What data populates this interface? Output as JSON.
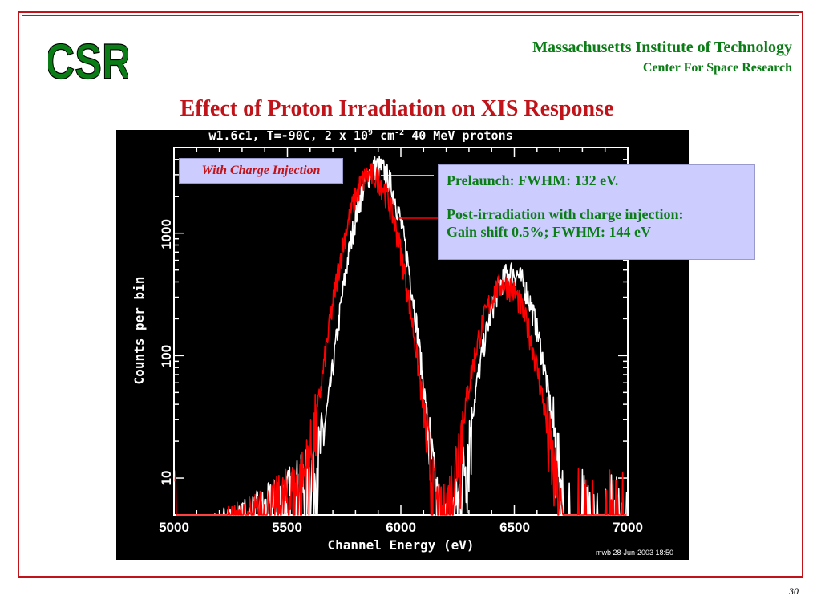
{
  "header": {
    "logo_text": "CSR",
    "org_name": "Massachusetts Institute of Technology",
    "org_sub": "Center For Space Research"
  },
  "slide": {
    "title": "Effect of Proton Irradiation on XIS Response",
    "page_number": "30"
  },
  "plot": {
    "title_prefix": "w1.6c1, T=-90C, 2 x 10",
    "title_exp1": "9",
    "title_mid": " cm",
    "title_exp2": "-2",
    "title_suffix": " 40 MeV protons",
    "stamp": "mwb 28-Jun-2003 18:50"
  },
  "callouts": {
    "left": "With Charge Injection",
    "right_line1": "Prelaunch: FWHM: 132 eV.",
    "right_line2": "Post-irradiation with charge injection:",
    "right_line3": "Gain shift 0.5%; FWHM: 144 eV"
  },
  "colors": {
    "frame": "#c0141a",
    "accent_green": "#0b7d16",
    "callout_bg": "#ccccff",
    "series_prelaunch": "#ffffff",
    "series_post": "#ff0000"
  },
  "chart_data": {
    "type": "line",
    "title": "w1.6c1, T=-90C, 2 x 10^9 cm^-2 40 MeV protons",
    "xlabel": "Channel Energy (eV)",
    "ylabel": "Counts per bin",
    "xlim": [
      5000,
      7000
    ],
    "ylim": [
      5,
      5000
    ],
    "y_scale": "log",
    "x_ticks": [
      "5000",
      "5500",
      "6000",
      "6500",
      "7000"
    ],
    "y_ticks": [
      "10",
      "100",
      "1000"
    ],
    "grid": false,
    "series": [
      {
        "name": "Prelaunch",
        "color": "#ffffff",
        "peaks": [
          {
            "center": 5898,
            "fwhm": 132,
            "peak_counts": 3500
          },
          {
            "center": 6490,
            "fwhm": 140,
            "peak_counts": 480
          }
        ]
      },
      {
        "name": "Post-irradiation with charge injection",
        "color": "#ff0000",
        "peaks": [
          {
            "center": 5870,
            "fwhm": 144,
            "peak_counts": 3000
          },
          {
            "center": 6458,
            "fwhm": 150,
            "peak_counts": 380
          }
        ]
      }
    ]
  }
}
